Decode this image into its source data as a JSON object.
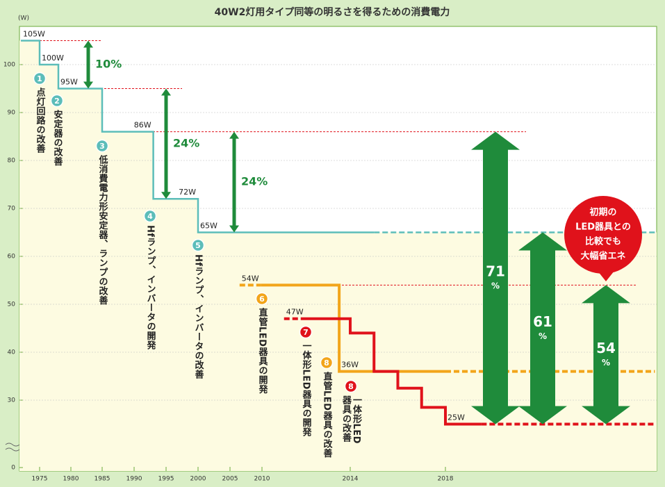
{
  "chart_data": {
    "type": "step",
    "title": "40W2灯用タイプ同等の明るさを得るための消費電力",
    "y_label": "(W)",
    "yticks": [
      0,
      30,
      40,
      50,
      60,
      70,
      80,
      90,
      100
    ],
    "xticks": [
      1975,
      1980,
      1985,
      1990,
      1995,
      2000,
      2005,
      2010,
      2014,
      2018
    ],
    "grid": true,
    "series": [
      {
        "color": "#5cbdb9",
        "style": "solid",
        "x": [
          1972,
          1975,
          1978,
          1985,
          1993,
          2000,
          2015
        ],
        "values": [
          105,
          100,
          95,
          86,
          72,
          65,
          65
        ],
        "value_labels": [
          "105W",
          "100W",
          "95W",
          "86W",
          "72W",
          "65W",
          null
        ]
      },
      {
        "color": "#5cbdb9",
        "style": "dashed",
        "x": [
          2015,
          2026.8
        ],
        "values": [
          65,
          65
        ]
      },
      {
        "color": "#f2a51a",
        "style": "dashed",
        "x": [
          2006.5,
          2009.8
        ],
        "values": [
          54,
          54
        ],
        "value_labels": [
          "54W",
          null
        ]
      },
      {
        "color": "#f2a51a",
        "style": "solid",
        "x": [
          2009.8,
          2013.5,
          2018
        ],
        "values": [
          54,
          36,
          36
        ],
        "value_labels": [
          null,
          "36W",
          null
        ]
      },
      {
        "color": "#f2a51a",
        "style": "dashed",
        "x": [
          2018,
          2026.8
        ],
        "values": [
          36,
          36
        ]
      },
      {
        "color": "#e0121b",
        "style": "dashed",
        "x": [
          2011,
          2012
        ],
        "values": [
          47,
          47
        ],
        "value_labels": [
          "47W",
          null
        ]
      },
      {
        "color": "#e0121b",
        "style": "solid",
        "x": [
          2012,
          2014,
          2015,
          2016,
          2017,
          2018,
          2019.5
        ],
        "values": [
          47,
          44,
          36,
          32.5,
          28.5,
          25,
          25
        ],
        "value_labels": [
          null,
          null,
          null,
          null,
          null,
          "25W",
          null
        ]
      },
      {
        "color": "#e0121b",
        "style": "dashed",
        "x": [
          2019.5,
          2026.8
        ],
        "values": [
          25,
          25
        ]
      }
    ],
    "reference_lines": [
      105,
      95,
      86,
      54
    ],
    "arrows": [
      {
        "from": 105,
        "to": 95,
        "label": "10%"
      },
      {
        "from": 95,
        "to": 72,
        "label": "24%"
      },
      {
        "from": 86,
        "to": 65,
        "label": "24%"
      },
      {
        "from": 86,
        "to": 25,
        "label": "71",
        "unit": "%"
      },
      {
        "from": 65,
        "to": 25,
        "label": "61",
        "unit": "%"
      },
      {
        "from": 54,
        "to": 25,
        "label": "54",
        "unit": "%"
      }
    ],
    "steps": [
      {
        "number": "1",
        "label": "点灯回路の改善",
        "color": "#5cbdb9"
      },
      {
        "number": "2",
        "label": "安定器の改善",
        "color": "#5cbdb9"
      },
      {
        "number": "3",
        "label": "低消費電力形安定器、ランプの改善",
        "color": "#5cbdb9"
      },
      {
        "number": "4",
        "label": "Hfランプ、インバータの開発",
        "color": "#5cbdb9"
      },
      {
        "number": "5",
        "label": "Hfランプ、インバータの改善",
        "color": "#5cbdb9"
      },
      {
        "number": "6",
        "label": "直管LED器具の開発",
        "color": "#f2a51a"
      },
      {
        "number": "7",
        "label": "一体形LED器具の開発",
        "color": "#e0121b"
      },
      {
        "number": "8",
        "label": "直管LED器具の改善",
        "color": "#f2a51a"
      },
      {
        "number": "8",
        "label": "一体形LED器具の改善",
        "color": "#e0121b"
      }
    ],
    "callout": {
      "lines": [
        "初期の",
        "LED器具との",
        "比較でも",
        "大幅省エネ"
      ],
      "color": "#e0121b"
    }
  }
}
